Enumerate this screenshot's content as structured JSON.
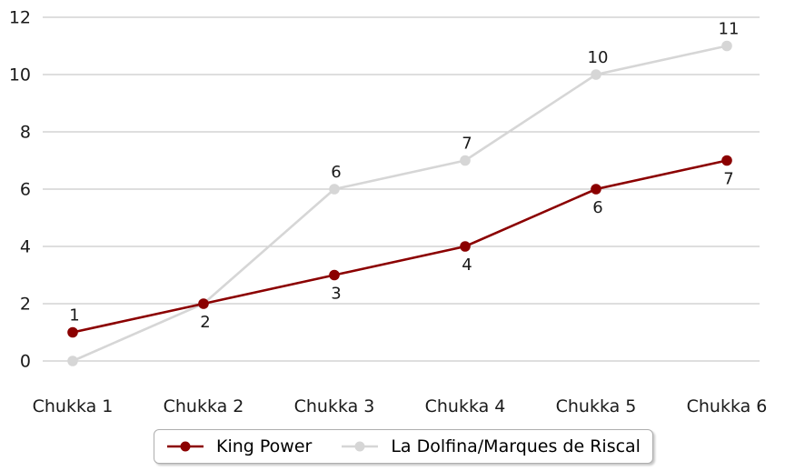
{
  "chart_data": {
    "type": "line",
    "title": "",
    "xlabel": "",
    "ylabel": "",
    "categories": [
      "Chukka 1",
      "Chukka 2",
      "Chukka 3",
      "Chukka 4",
      "Chukka 5",
      "Chukka 6"
    ],
    "series": [
      {
        "name": "King Power",
        "color": "#8b0000",
        "values": [
          1,
          2,
          3,
          4,
          6,
          7
        ],
        "point_labels": [
          "1",
          "2",
          "3",
          "4",
          "6",
          "7"
        ],
        "label_positions": [
          "above",
          "below",
          "below",
          "below",
          "below",
          "below"
        ]
      },
      {
        "name": "La Dolfina/Marques de Riscal",
        "color": "#d6d6d6",
        "values": [
          0,
          2,
          6,
          7,
          10,
          11
        ],
        "point_labels": [
          "",
          "",
          "6",
          "7",
          "10",
          "11"
        ],
        "label_positions": [
          "above",
          "above",
          "above",
          "above",
          "above",
          "above"
        ]
      }
    ],
    "ylim": [
      0,
      12
    ],
    "yticks": [
      0,
      2,
      4,
      6,
      8,
      10,
      12
    ],
    "grid": true,
    "legend_position": "bottom"
  },
  "colors": {
    "grid": "#c9c9c9",
    "tick_label": "#1a1a1a",
    "point_label": "#1a1a1a",
    "background": "#ffffff",
    "legend_border": "#aeaeae"
  }
}
